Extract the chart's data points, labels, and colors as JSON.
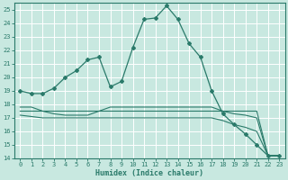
{
  "xlabel": "Humidex (Indice chaleur)",
  "bg_color": "#c8e8e0",
  "grid_color": "#ffffff",
  "line_color": "#2a7a6a",
  "xlim": [
    -0.5,
    23.5
  ],
  "ylim": [
    14,
    25.5
  ],
  "xticks": [
    0,
    1,
    2,
    3,
    4,
    5,
    6,
    7,
    8,
    9,
    10,
    11,
    12,
    13,
    14,
    15,
    16,
    17,
    18,
    19,
    20,
    21,
    22,
    23
  ],
  "yticks": [
    14,
    15,
    16,
    17,
    18,
    19,
    20,
    21,
    22,
    23,
    24,
    25
  ],
  "series1_x": [
    0,
    1,
    2,
    3,
    4,
    5,
    6,
    7,
    8,
    9,
    10,
    11,
    12,
    13,
    14,
    15,
    16,
    17,
    18,
    19,
    20,
    21,
    22,
    23
  ],
  "series1_y": [
    19.0,
    18.8,
    18.8,
    19.2,
    20.0,
    20.5,
    21.3,
    21.5,
    19.3,
    19.7,
    22.2,
    24.3,
    24.4,
    25.3,
    24.3,
    22.5,
    21.5,
    19.0,
    17.3,
    16.5,
    15.8,
    15.0,
    14.2,
    14.2
  ],
  "series2_x": [
    0,
    1,
    2,
    3,
    4,
    5,
    6,
    7,
    8,
    9,
    10,
    11,
    12,
    13,
    14,
    15,
    16,
    17,
    18,
    19,
    20,
    21,
    22,
    23
  ],
  "series2_y": [
    17.8,
    17.8,
    17.5,
    17.3,
    17.2,
    17.2,
    17.2,
    17.5,
    17.8,
    17.8,
    17.8,
    17.8,
    17.8,
    17.8,
    17.8,
    17.8,
    17.8,
    17.8,
    17.5,
    17.3,
    17.2,
    17.0,
    14.2,
    14.2
  ],
  "series3_x": [
    0,
    1,
    2,
    3,
    4,
    5,
    6,
    7,
    8,
    9,
    10,
    11,
    12,
    13,
    14,
    15,
    16,
    17,
    18,
    19,
    20,
    21,
    22,
    23
  ],
  "series3_y": [
    17.5,
    17.5,
    17.5,
    17.5,
    17.5,
    17.5,
    17.5,
    17.5,
    17.5,
    17.5,
    17.5,
    17.5,
    17.5,
    17.5,
    17.5,
    17.5,
    17.5,
    17.5,
    17.5,
    17.5,
    17.5,
    17.5,
    14.2,
    14.2
  ],
  "series4_x": [
    0,
    1,
    2,
    3,
    4,
    5,
    6,
    7,
    8,
    9,
    10,
    11,
    12,
    13,
    14,
    15,
    16,
    17,
    18,
    19,
    20,
    21,
    22,
    23
  ],
  "series4_y": [
    17.2,
    17.1,
    17.0,
    17.0,
    17.0,
    17.0,
    17.0,
    17.0,
    17.0,
    17.0,
    17.0,
    17.0,
    17.0,
    17.0,
    17.0,
    17.0,
    17.0,
    17.0,
    16.8,
    16.5,
    16.3,
    16.0,
    14.2,
    14.2
  ]
}
